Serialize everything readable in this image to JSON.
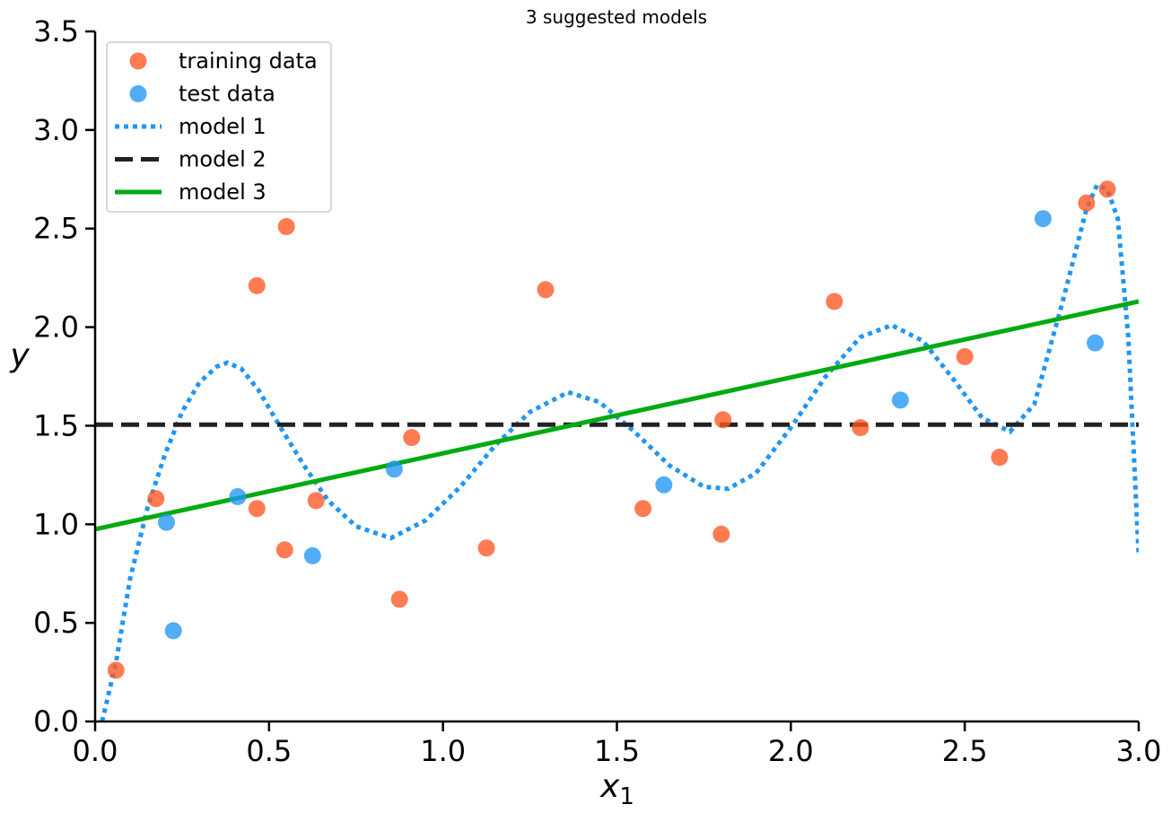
{
  "chart_data": {
    "type": "scatter",
    "title": "3 suggested models",
    "xlabel": "x",
    "xlabel_subscript": "1",
    "ylabel": "y",
    "xlim": [
      0,
      3
    ],
    "ylim": [
      0,
      3.5
    ],
    "xticks": [
      0,
      0.5,
      1,
      1.5,
      2,
      2.5,
      3
    ],
    "yticks": [
      0,
      0.5,
      1,
      1.5,
      2,
      2.5,
      3,
      3.5
    ],
    "xtick_labels": [
      "0.0",
      "0.5",
      "1.0",
      "1.5",
      "2.0",
      "2.5",
      "3.0"
    ],
    "ytick_labels": [
      "0.0",
      "0.5",
      "1.0",
      "1.5",
      "2.0",
      "2.5",
      "3.0",
      "3.5"
    ],
    "grid": false,
    "legend_position": "top-left",
    "series": [
      {
        "name": "training data",
        "kind": "scatter",
        "color": "#ff5722",
        "points": [
          [
            0.06,
            0.26
          ],
          [
            0.175,
            1.13
          ],
          [
            0.465,
            2.21
          ],
          [
            0.465,
            1.08
          ],
          [
            0.545,
            0.87
          ],
          [
            0.55,
            2.51
          ],
          [
            0.635,
            1.12
          ],
          [
            0.875,
            0.62
          ],
          [
            0.91,
            1.44
          ],
          [
            1.125,
            0.88
          ],
          [
            1.295,
            2.19
          ],
          [
            1.575,
            1.08
          ],
          [
            1.8,
            0.95
          ],
          [
            1.805,
            1.53
          ],
          [
            2.125,
            2.13
          ],
          [
            2.2,
            1.49
          ],
          [
            2.5,
            1.85
          ],
          [
            2.6,
            1.34
          ],
          [
            2.85,
            2.63
          ],
          [
            2.91,
            2.7
          ]
        ]
      },
      {
        "name": "test data",
        "kind": "scatter",
        "color": "#2196f3",
        "points": [
          [
            0.205,
            1.01
          ],
          [
            0.225,
            0.46
          ],
          [
            0.41,
            1.14
          ],
          [
            0.625,
            0.84
          ],
          [
            0.86,
            1.28
          ],
          [
            1.635,
            1.2
          ],
          [
            2.315,
            1.63
          ],
          [
            2.725,
            2.55
          ],
          [
            2.875,
            1.92
          ]
        ]
      },
      {
        "name": "model 1",
        "kind": "line",
        "style": "dotted",
        "color": "#2196f3",
        "points": [
          [
            0.02,
            0.0
          ],
          [
            0.06,
            0.3
          ],
          [
            0.1,
            0.72
          ],
          [
            0.15,
            1.08
          ],
          [
            0.2,
            1.35
          ],
          [
            0.25,
            1.57
          ],
          [
            0.3,
            1.72
          ],
          [
            0.35,
            1.8
          ],
          [
            0.38,
            1.82
          ],
          [
            0.42,
            1.79
          ],
          [
            0.47,
            1.68
          ],
          [
            0.53,
            1.5
          ],
          [
            0.6,
            1.3
          ],
          [
            0.67,
            1.12
          ],
          [
            0.75,
            0.99
          ],
          [
            0.85,
            0.93
          ],
          [
            0.95,
            1.02
          ],
          [
            1.05,
            1.19
          ],
          [
            1.15,
            1.4
          ],
          [
            1.25,
            1.57
          ],
          [
            1.36,
            1.67
          ],
          [
            1.45,
            1.62
          ],
          [
            1.55,
            1.47
          ],
          [
            1.65,
            1.3
          ],
          [
            1.75,
            1.19
          ],
          [
            1.82,
            1.18
          ],
          [
            1.9,
            1.26
          ],
          [
            2.0,
            1.49
          ],
          [
            2.1,
            1.75
          ],
          [
            2.2,
            1.95
          ],
          [
            2.29,
            2.01
          ],
          [
            2.38,
            1.93
          ],
          [
            2.47,
            1.73
          ],
          [
            2.55,
            1.54
          ],
          [
            2.63,
            1.47
          ],
          [
            2.7,
            1.61
          ],
          [
            2.78,
            2.12
          ],
          [
            2.85,
            2.6
          ],
          [
            2.88,
            2.72
          ],
          [
            2.91,
            2.7
          ],
          [
            2.94,
            2.55
          ],
          [
            2.97,
            1.95
          ],
          [
            3.0,
            0.84
          ]
        ]
      },
      {
        "name": "model 2",
        "kind": "line",
        "style": "dashed",
        "color": "#222222",
        "points": [
          [
            0,
            1.505
          ],
          [
            3,
            1.505
          ]
        ]
      },
      {
        "name": "model 3",
        "kind": "line",
        "style": "solid",
        "color": "#00aa11",
        "points": [
          [
            0,
            0.975
          ],
          [
            3,
            2.13
          ]
        ]
      }
    ]
  }
}
